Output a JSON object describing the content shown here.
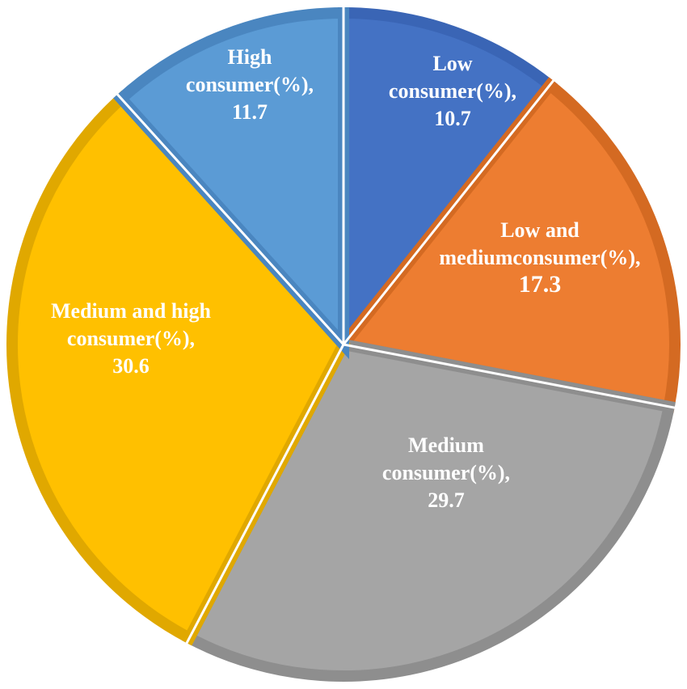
{
  "chart_data": {
    "type": "pie",
    "start_angle_deg": 0,
    "direction": "clockwise",
    "slices": [
      {
        "label_lines": [
          "Low",
          "consumer(%),",
          "10.7"
        ],
        "name": "Low consumer(%)",
        "value": 10.7,
        "color": "#4472c4",
        "border": "#3a65b5"
      },
      {
        "label_lines": [
          "Low and",
          "mediumconsumer(%),",
          "17.3"
        ],
        "name": "Low and mediumconsumer(%)",
        "value": 17.3,
        "color": "#ed7d31",
        "border": "#d46a22"
      },
      {
        "label_lines": [
          "Medium",
          "consumer(%),",
          "29.7"
        ],
        "name": "Medium consumer(%)",
        "value": 29.7,
        "color": "#a5a5a5",
        "border": "#8e8e8e"
      },
      {
        "label_lines": [
          "Medium and high",
          "consumer(%),",
          "30.6"
        ],
        "name": "Medium and high consumer(%)",
        "value": 30.6,
        "color": "#ffc000",
        "border": "#e0a800"
      },
      {
        "label_lines": [
          "High",
          "consumer(%),",
          "11.7"
        ],
        "name": "High consumer(%)",
        "value": 11.7,
        "color": "#5b9bd5",
        "border": "#4a86c0"
      }
    ]
  }
}
